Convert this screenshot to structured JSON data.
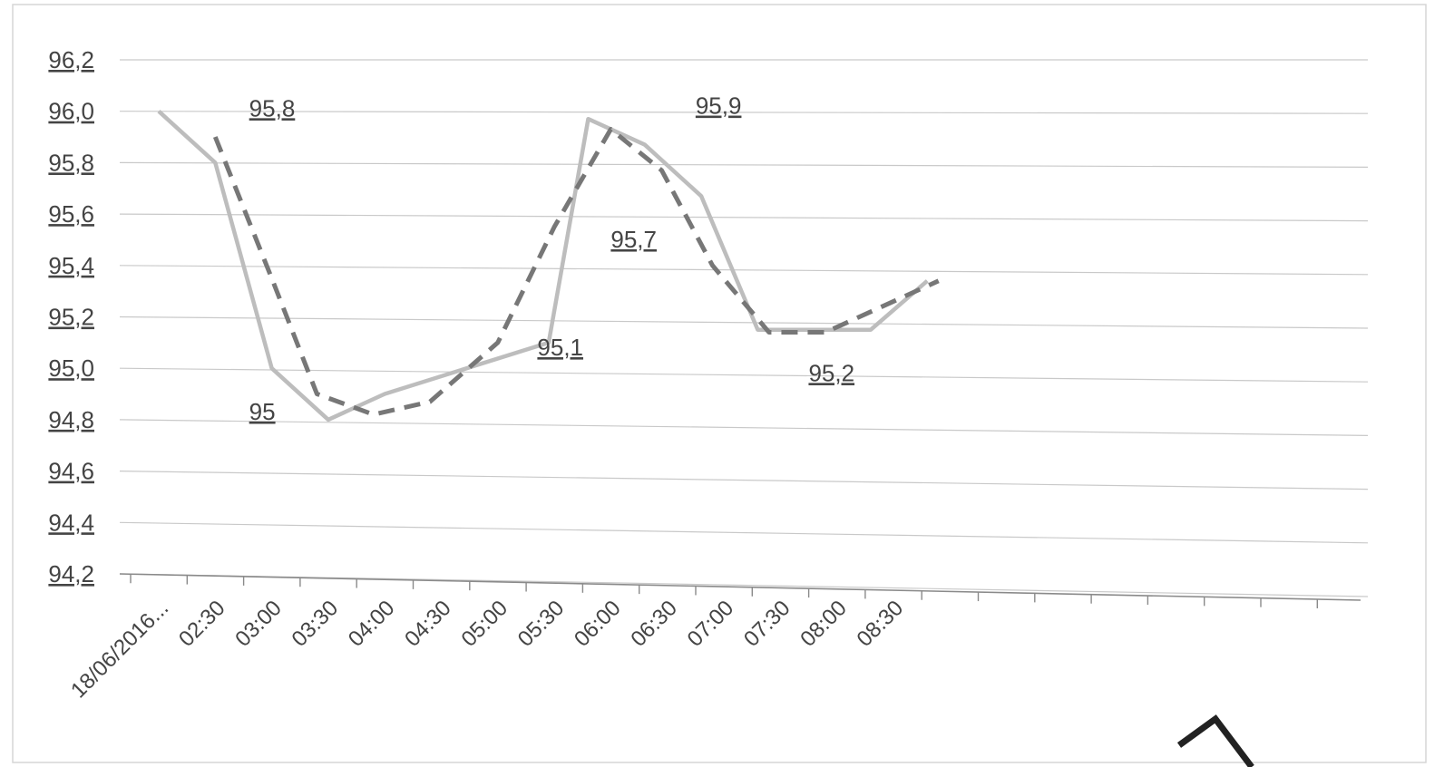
{
  "chart_data": {
    "type": "line",
    "categories": [
      "18/06/2016...",
      "02:30",
      "03:00",
      "03:30",
      "04:00",
      "04:30",
      "05:00",
      "05:30",
      "06:00",
      "06:30",
      "07:00",
      "07:30",
      "08:00",
      "08:30"
    ],
    "ylim": [
      94.2,
      96.2
    ],
    "yticks": [
      "96,2",
      "96,0",
      "95,8",
      "95,6",
      "95,4",
      "95,2",
      "95,0",
      "94,8",
      "94,6",
      "94,4",
      "94,2"
    ],
    "grid": true,
    "series": [
      {
        "style": "solid",
        "color": "#bdbdbd",
        "points": [
          {
            "x": 0,
            "y": 96.0
          },
          {
            "x": 1,
            "y": 95.8
          },
          {
            "x": 2,
            "y": 95.0
          },
          {
            "x": 3,
            "y": 94.8
          },
          {
            "x": 4,
            "y": 94.9
          },
          {
            "x": 6.9,
            "y": 95.1
          },
          {
            "x": 7.6,
            "y": 95.97
          },
          {
            "x": 8.6,
            "y": 95.87
          },
          {
            "x": 9.6,
            "y": 95.67
          },
          {
            "x": 10.6,
            "y": 95.15
          },
          {
            "x": 11.6,
            "y": 95.15
          },
          {
            "x": 12.6,
            "y": 95.15
          },
          {
            "x": 13.6,
            "y": 95.34
          }
        ]
      },
      {
        "style": "dashed",
        "color": "#777777",
        "points": [
          {
            "x": 1,
            "y": 95.9
          },
          {
            "x": 2,
            "y": 95.35
          },
          {
            "x": 2.8,
            "y": 94.9
          },
          {
            "x": 3.8,
            "y": 94.82
          },
          {
            "x": 4.8,
            "y": 94.87
          },
          {
            "x": 6.0,
            "y": 95.1
          },
          {
            "x": 7.0,
            "y": 95.55
          },
          {
            "x": 8.0,
            "y": 95.93
          },
          {
            "x": 8.9,
            "y": 95.77
          },
          {
            "x": 9.8,
            "y": 95.4
          },
          {
            "x": 10.8,
            "y": 95.14
          },
          {
            "x": 11.8,
            "y": 95.14
          },
          {
            "x": 12.8,
            "y": 95.24
          },
          {
            "x": 13.8,
            "y": 95.34
          }
        ]
      }
    ],
    "annotations": [
      {
        "text": "95,8",
        "x": 1.6,
        "y": 95.98
      },
      {
        "text": "95",
        "x": 1.6,
        "y": 94.8
      },
      {
        "text": "95,9",
        "x": 9.5,
        "y": 95.99
      },
      {
        "text": "95,7",
        "x": 8.0,
        "y": 95.47
      },
      {
        "text": "95,1",
        "x": 6.7,
        "y": 95.05
      },
      {
        "text": "95,2",
        "x": 11.5,
        "y": 94.95
      }
    ]
  }
}
